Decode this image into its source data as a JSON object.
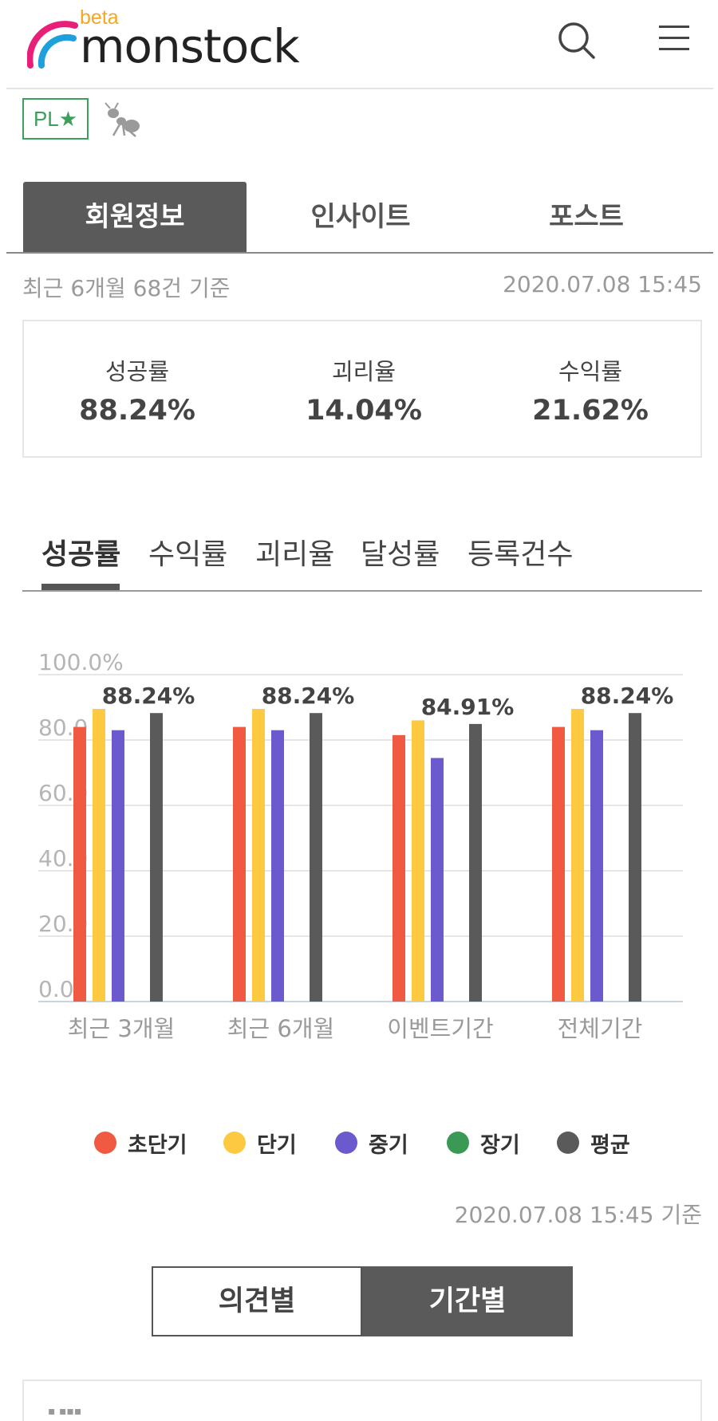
{
  "header": {
    "logo_beta": "beta",
    "logo_text": "monstock"
  },
  "badges": {
    "pl": "PL★"
  },
  "main_tabs": [
    {
      "label": "회원정보",
      "active": true
    },
    {
      "label": "인사이트",
      "active": false
    },
    {
      "label": "포스트",
      "active": false
    }
  ],
  "summary": {
    "basis": "최근 6개월 68건 기준",
    "updated": "2020.07.08 15:45"
  },
  "stats": [
    {
      "label": "성공률",
      "value": "88.24%"
    },
    {
      "label": "괴리율",
      "value": "14.04%"
    },
    {
      "label": "수익률",
      "value": "21.62%"
    }
  ],
  "chart_tabs": [
    {
      "label": "성공률",
      "active": true
    },
    {
      "label": "수익률",
      "active": false
    },
    {
      "label": "괴리율",
      "active": false
    },
    {
      "label": "달성률",
      "active": false
    },
    {
      "label": "등록건수",
      "active": false
    }
  ],
  "chart_data": {
    "type": "bar",
    "categories": [
      "최근 3개월",
      "최근 6개월",
      "이벤트기간",
      "전체기간"
    ],
    "y_ticks": [
      "100.0%",
      "80.0",
      "60.0",
      "40.0",
      "20.0",
      "0.0"
    ],
    "ylim": [
      0,
      100
    ],
    "series": [
      {
        "name": "초단기",
        "color": "#f05a43",
        "values": [
          84.0,
          84.0,
          81.5,
          84.0
        ]
      },
      {
        "name": "단기",
        "color": "#fcc940",
        "values": [
          89.5,
          89.5,
          86.0,
          89.5
        ]
      },
      {
        "name": "중기",
        "color": "#6a5acd",
        "values": [
          83.0,
          83.0,
          74.5,
          83.0
        ]
      },
      {
        "name": "장기",
        "color": "#3a9a55",
        "values": [
          null,
          null,
          null,
          null
        ]
      },
      {
        "name": "평균",
        "color": "#5a5a5a",
        "values": [
          88.24,
          88.24,
          84.91,
          88.24
        ]
      }
    ],
    "data_labels": [
      "88.24%",
      "88.24%",
      "84.91%",
      "88.24%"
    ],
    "grid": true,
    "legend_position": "bottom"
  },
  "chart_basis": "2020.07.08 15:45 기준",
  "toggle": {
    "off_label": "의견별",
    "on_label": "기간별"
  },
  "bottom": {
    "text": "▪ ▪▪▪"
  }
}
